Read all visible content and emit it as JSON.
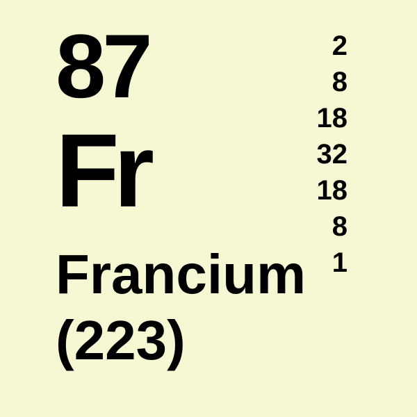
{
  "element": {
    "atomic_number": "87",
    "symbol": "Fr",
    "name": "Francium",
    "atomic_mass": "(223)",
    "electron_shells": [
      "2",
      "8",
      "18",
      "32",
      "18",
      "8",
      "1"
    ]
  },
  "style": {
    "background_color": "#f7f7d4",
    "text_color": "#000000",
    "font_family": "Arial, Helvetica, sans-serif",
    "atomic_number_fontsize": 130,
    "symbol_fontsize": 150,
    "name_fontsize": 80,
    "mass_fontsize": 80,
    "shell_fontsize": 40,
    "font_weight_heavy": 900,
    "font_weight_bold": 700
  }
}
